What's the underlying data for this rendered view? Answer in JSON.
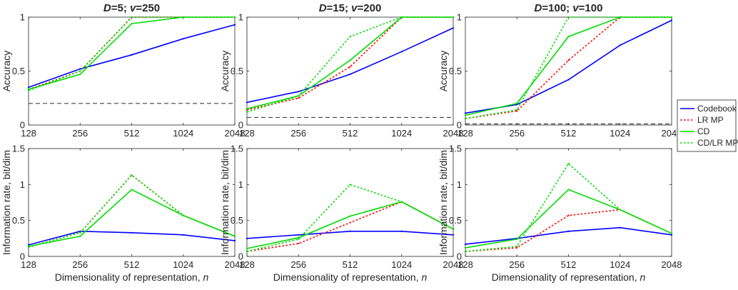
{
  "x_tick_labels": [
    "128",
    "256",
    "512",
    "1024",
    "2048"
  ],
  "legend": {
    "items": [
      {
        "label": "Codebook",
        "color": "#0000ff",
        "style": "solid"
      },
      {
        "label": "LR MP",
        "color": "#ff0000",
        "style": "dotted"
      },
      {
        "label": "CD",
        "color": "#00dd00",
        "style": "solid"
      },
      {
        "label": "CD/LR MP",
        "color": "#00dd00",
        "style": "dotted"
      }
    ]
  },
  "xlabel": "Dimensionality of representation, n",
  "chart_data": [
    {
      "type": "line",
      "title": "D=5; v=250",
      "ylabel": "Accuracy",
      "x": [
        128,
        256,
        512,
        1024,
        2048
      ],
      "xscale": "log2",
      "ylim": [
        0,
        1
      ],
      "yticks": [
        "0",
        "0.5",
        "1"
      ],
      "chance_level": 0.2,
      "series": [
        {
          "name": "Codebook",
          "values": [
            0.35,
            0.52,
            0.65,
            0.8,
            0.93
          ]
        },
        {
          "name": "LR MP",
          "values": [
            0.33,
            0.5,
            1.0,
            1.0,
            1.0
          ]
        },
        {
          "name": "CD",
          "values": [
            0.33,
            0.47,
            0.94,
            1.0,
            1.0
          ]
        },
        {
          "name": "CD/LR MP",
          "values": [
            0.32,
            0.5,
            1.0,
            1.0,
            1.0
          ]
        }
      ]
    },
    {
      "type": "line",
      "title": "D=15; v=200",
      "ylabel": "Accuracy",
      "x": [
        128,
        256,
        512,
        1024,
        2048
      ],
      "xscale": "log2",
      "ylim": [
        0,
        1
      ],
      "yticks": [
        "0",
        "0.5",
        "1"
      ],
      "chance_level": 0.07,
      "series": [
        {
          "name": "Codebook",
          "values": [
            0.21,
            0.31,
            0.47,
            0.68,
            0.9
          ]
        },
        {
          "name": "LR MP",
          "values": [
            0.14,
            0.25,
            0.54,
            1.0,
            1.0
          ]
        },
        {
          "name": "CD",
          "values": [
            0.15,
            0.27,
            0.6,
            1.0,
            1.0
          ]
        },
        {
          "name": "CD/LR MP",
          "values": [
            0.12,
            0.27,
            0.82,
            1.0,
            1.0
          ]
        }
      ]
    },
    {
      "type": "line",
      "title": "D=100; v=100",
      "ylabel": "Accuracy",
      "x": [
        128,
        256,
        512,
        1024,
        2048
      ],
      "xscale": "log2",
      "ylim": [
        0,
        1
      ],
      "yticks": [
        "0",
        "0.5",
        "1"
      ],
      "chance_level": 0.01,
      "series": [
        {
          "name": "Codebook",
          "values": [
            0.11,
            0.19,
            0.42,
            0.74,
            0.97
          ]
        },
        {
          "name": "LR MP",
          "values": [
            0.06,
            0.13,
            0.6,
            1.0,
            1.0
          ]
        },
        {
          "name": "CD",
          "values": [
            0.09,
            0.2,
            0.82,
            1.0,
            1.0
          ]
        },
        {
          "name": "CD/LR MP",
          "values": [
            0.06,
            0.14,
            1.0,
            1.0,
            1.0
          ]
        }
      ]
    },
    {
      "type": "line",
      "title": "",
      "ylabel": "Information rate, bit/dim",
      "x": [
        128,
        256,
        512,
        1024,
        2048
      ],
      "xscale": "log2",
      "ylim": [
        0,
        1.5
      ],
      "yticks": [
        "0",
        "0.5",
        "1",
        "1.5"
      ],
      "series": [
        {
          "name": "Codebook",
          "values": [
            0.16,
            0.35,
            0.33,
            0.3,
            0.22
          ]
        },
        {
          "name": "LR MP",
          "values": [
            0.13,
            0.33,
            1.13,
            0.57,
            0.28
          ]
        },
        {
          "name": "CD",
          "values": [
            0.14,
            0.28,
            0.93,
            0.57,
            0.28
          ]
        },
        {
          "name": "CD/LR MP",
          "values": [
            0.13,
            0.33,
            1.13,
            0.57,
            0.28
          ]
        }
      ]
    },
    {
      "type": "line",
      "title": "",
      "ylabel": "Information rate, bit/dim",
      "x": [
        128,
        256,
        512,
        1024,
        2048
      ],
      "xscale": "log2",
      "ylim": [
        0,
        1.5
      ],
      "yticks": [
        "0",
        "0.5",
        "1",
        "1.5"
      ],
      "series": [
        {
          "name": "Codebook",
          "values": [
            0.25,
            0.3,
            0.35,
            0.35,
            0.3
          ]
        },
        {
          "name": "LR MP",
          "values": [
            0.07,
            0.18,
            0.47,
            0.76,
            0.38
          ]
        },
        {
          "name": "CD",
          "values": [
            0.11,
            0.26,
            0.56,
            0.76,
            0.38
          ]
        },
        {
          "name": "CD/LR MP",
          "values": [
            0.07,
            0.24,
            1.0,
            0.76,
            0.38
          ]
        }
      ]
    },
    {
      "type": "line",
      "title": "",
      "ylabel": "Information rate, bit/dim",
      "x": [
        128,
        256,
        512,
        1024,
        2048
      ],
      "xscale": "log2",
      "ylim": [
        0,
        1.5
      ],
      "yticks": [
        "0",
        "0.5",
        "1",
        "1.5"
      ],
      "series": [
        {
          "name": "Codebook",
          "values": [
            0.17,
            0.25,
            0.35,
            0.4,
            0.3
          ]
        },
        {
          "name": "LR MP",
          "values": [
            0.07,
            0.12,
            0.57,
            0.65,
            0.32
          ]
        },
        {
          "name": "CD",
          "values": [
            0.12,
            0.24,
            0.93,
            0.65,
            0.32
          ]
        },
        {
          "name": "CD/LR MP",
          "values": [
            0.07,
            0.14,
            1.29,
            0.65,
            0.32
          ]
        }
      ]
    }
  ]
}
